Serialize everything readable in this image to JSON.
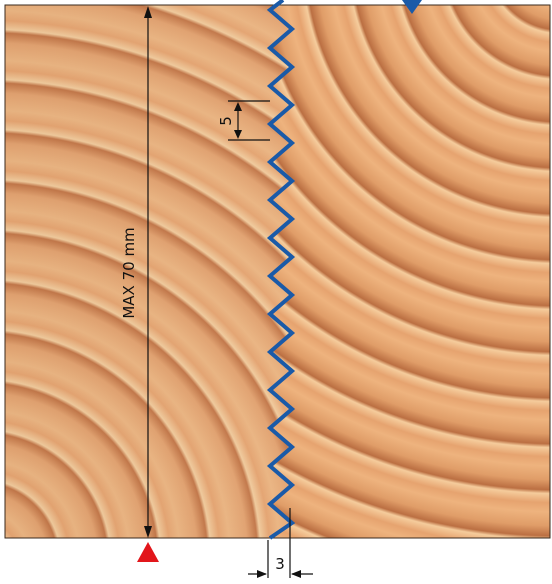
{
  "labels": {
    "max_depth": "MAX  70 mm",
    "tooth_pitch": "5",
    "tooth_depth": "3"
  },
  "colors": {
    "wood_light": "#efb683",
    "wood_mid": "#dd9a65",
    "wood_ring_dark": "#b86a3f",
    "wood_ring_light": "#f7d2a5",
    "cut_line": "#1a5aa8",
    "marker_bottom": "#e2161b",
    "marker_top": "#1a5aa8",
    "dimension_line": "#111111"
  }
}
